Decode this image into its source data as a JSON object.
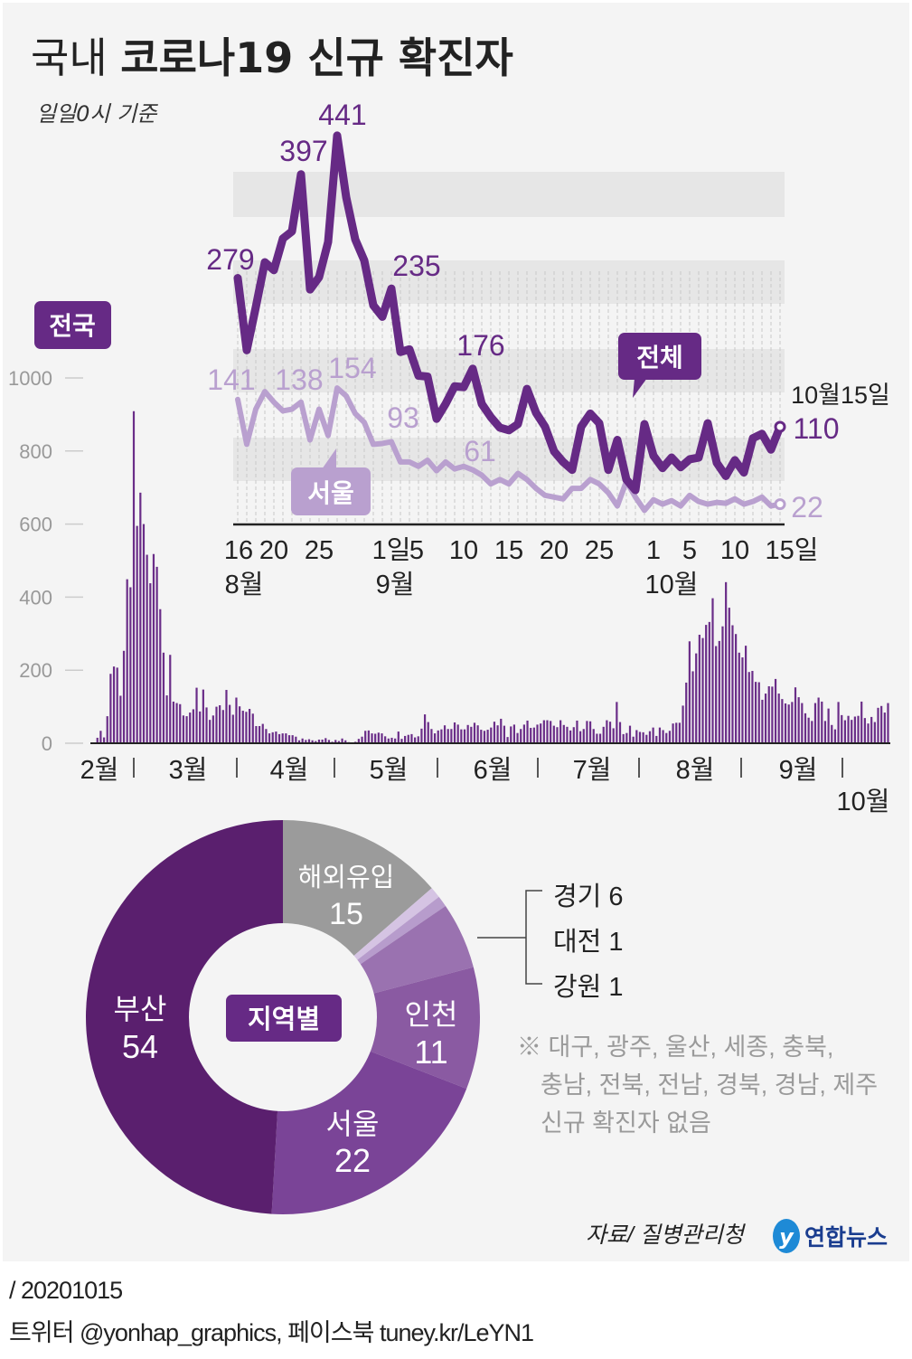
{
  "title": {
    "prefix": "국내",
    "main": "코로나19 신규 확진자"
  },
  "subtitle": "일일0시 기준",
  "badges": {
    "nationwide": "전국",
    "total": "전체",
    "seoul": "서울",
    "by_region": "지역별"
  },
  "colors": {
    "background": "#f4f4f4",
    "total_line": "#662a85",
    "seoul_line": "#b9a0cf",
    "bar": "#6a2d88",
    "band": "#e6e6e6",
    "pie_busan": "#5a1f6e",
    "pie_seoul": "#7a4497",
    "pie_incheon": "#8a5aa2",
    "pie_gyeonggi": "#9a72b0",
    "pie_daejeon": "#b79ccc",
    "pie_gangwon": "#d5c4e3",
    "pie_overseas": "#9b9b9b",
    "logo": "#1a3d8f"
  },
  "chart_data": [
    {
      "type": "line",
      "x_start": "2020-08-16",
      "x_end": "2020-10-15",
      "x_tick_labels": [
        "16",
        "20",
        "25",
        "1일",
        "5",
        "10",
        "15",
        "20",
        "25",
        "1",
        "5",
        "10",
        "15일"
      ],
      "x_month_labels": [
        "8월",
        "9월",
        "10월"
      ],
      "end_label": "10월15일",
      "series": [
        {
          "name": "전체",
          "values": [
            279,
            197,
            246,
            297,
            288,
            324,
            332,
            397,
            266,
            280,
            320,
            441,
            371,
            323,
            299,
            248,
            235,
            267,
            195,
            198,
            168,
            167,
            119,
            136,
            156,
            155,
            176,
            136,
            121,
            109,
            106,
            113,
            153,
            126,
            110,
            82,
            70,
            61,
            110,
            125,
            114,
            61,
            95,
            50,
            38,
            113,
            77,
            63,
            75,
            64,
            73,
            75,
            114,
            69,
            54,
            72,
            58,
            97,
            102,
            84,
            110
          ]
        },
        {
          "name": "서울",
          "values": [
            141,
            90,
            130,
            150,
            138,
            128,
            130,
            138,
            95,
            130,
            100,
            154,
            145,
            125,
            115,
            90,
            91,
            93,
            70,
            70,
            65,
            72,
            60,
            70,
            62,
            65,
            61,
            55,
            45,
            50,
            45,
            57,
            50,
            40,
            32,
            30,
            28,
            40,
            40,
            50,
            45,
            35,
            20,
            48,
            30,
            15,
            27,
            22,
            26,
            20,
            32,
            25,
            22,
            24,
            23,
            28,
            22,
            25,
            30,
            20,
            22
          ]
        }
      ],
      "annotations_total": [
        "279",
        "397",
        "441",
        "235",
        "176",
        "110"
      ],
      "annotations_seoul": [
        "141",
        "138",
        "154",
        "93",
        "61",
        "22"
      ]
    },
    {
      "type": "bar",
      "name": "전국",
      "x_start": "2020-02-18",
      "x_end": "2020-10-15",
      "ylim": [
        0,
        1000
      ],
      "y_tick_labels": [
        "0",
        "200",
        "400",
        "600",
        "800",
        "1000"
      ],
      "x_month_labels": [
        "2월",
        "3월",
        "4월",
        "5월",
        "6월",
        "7월",
        "8월",
        "9월",
        "10월"
      ],
      "values": [
        1,
        15,
        34,
        16,
        74,
        190,
        210,
        207,
        130,
        253,
        449,
        427,
        909,
        595,
        686,
        600,
        516,
        438,
        518,
        483,
        367,
        248,
        131,
        242,
        114,
        110,
        107,
        76,
        74,
        84,
        93,
        152,
        87,
        147,
        98,
        64,
        76,
        100,
        104,
        91,
        146,
        105,
        78,
        125,
        101,
        89,
        86,
        94,
        81,
        47,
        47,
        53,
        39,
        27,
        30,
        32,
        25,
        27,
        27,
        22,
        22,
        18,
        8,
        13,
        9,
        11,
        8,
        6,
        10,
        10,
        14,
        9,
        4,
        9,
        6,
        13,
        8,
        3,
        2,
        4,
        12,
        18,
        34,
        35,
        27,
        26,
        29,
        27,
        19,
        13,
        15,
        13,
        32,
        12,
        20,
        23,
        25,
        16,
        19,
        40,
        79,
        58,
        39,
        27,
        35,
        38,
        49,
        39,
        39,
        57,
        51,
        38,
        38,
        50,
        45,
        56,
        49,
        37,
        34,
        37,
        43,
        59,
        49,
        67,
        48,
        17,
        46,
        51,
        28,
        39,
        51,
        62,
        42,
        43,
        51,
        54,
        63,
        63,
        61,
        48,
        44,
        63,
        50,
        45,
        35,
        44,
        62,
        33,
        39,
        61,
        60,
        39,
        26,
        26,
        45,
        63,
        59,
        41,
        113,
        58,
        25,
        28,
        48,
        18,
        36,
        31,
        30,
        23,
        33,
        43,
        20,
        43,
        36,
        28,
        34,
        54,
        56,
        56,
        103,
        166,
        279,
        197,
        246,
        297,
        288,
        324,
        332,
        397,
        266,
        280,
        320,
        441,
        371,
        323,
        299,
        248,
        235,
        267,
        195,
        198,
        168,
        167,
        119,
        136,
        156,
        155,
        176,
        136,
        121,
        109,
        106,
        113,
        153,
        126,
        110,
        82,
        70,
        61,
        110,
        125,
        114,
        61,
        95,
        50,
        38,
        113,
        77,
        63,
        75,
        64,
        73,
        75,
        114,
        69,
        54,
        72,
        58,
        97,
        102,
        84,
        110
      ]
    },
    {
      "type": "pie",
      "title": "지역별",
      "categories": [
        "해외유입",
        "강원",
        "대전",
        "경기",
        "인천",
        "서울",
        "부산"
      ],
      "values": [
        15,
        1,
        1,
        6,
        11,
        22,
        54
      ]
    }
  ],
  "pie_labels": {
    "overseas": {
      "name": "해외유입",
      "value": "15"
    },
    "busan": {
      "name": "부산",
      "value": "54"
    },
    "incheon": {
      "name": "인천",
      "value": "11"
    },
    "seoul": {
      "name": "서울",
      "value": "22"
    },
    "gyeonggi": "경기 6",
    "daejeon": "대전 1",
    "gangwon": "강원 1"
  },
  "note": [
    "※ 대구, 광주, 울산, 세종, 충북,",
    "충남, 전북, 전남, 경북, 경남, 제주",
    "신규 확진자 없음"
  ],
  "source": "자료/ 질병관리청",
  "logo_text": "연합뉴스",
  "footer": {
    "date": "/ 20201015",
    "social": "트위터 @yonhap_graphics, 페이스북 tuney.kr/LeYN1"
  }
}
